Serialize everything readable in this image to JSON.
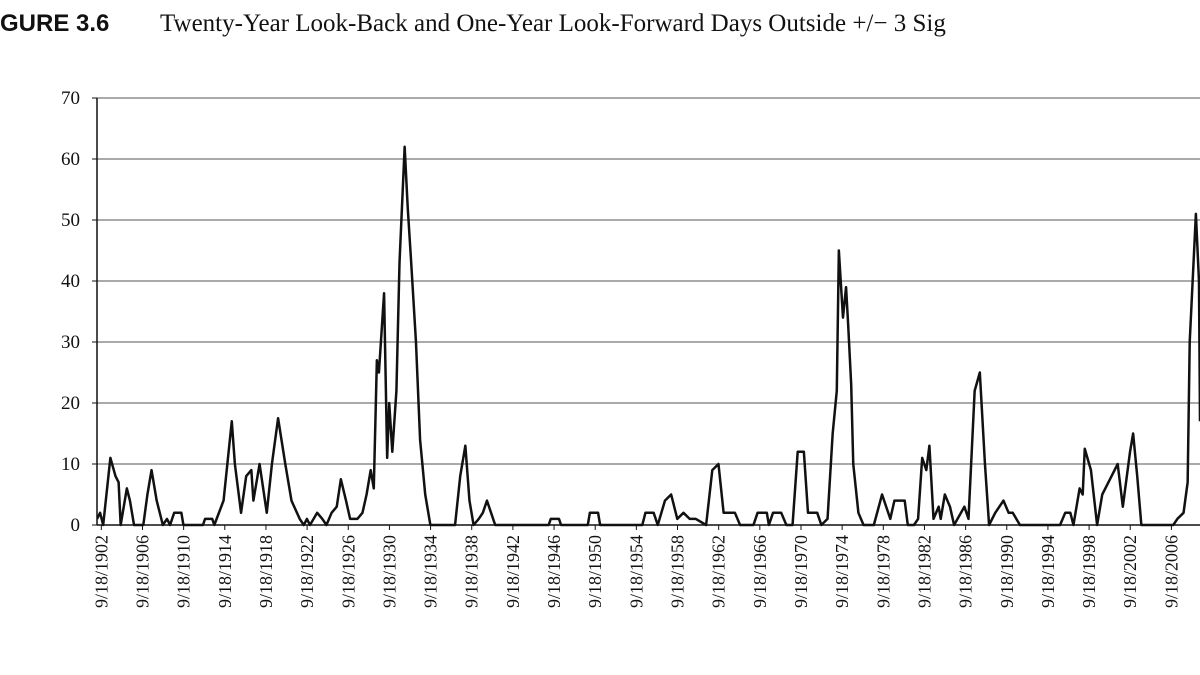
{
  "chart_data": {
    "type": "line",
    "figure_label": "GURE 3.6",
    "title": "Twenty-Year Look-Back and One-Year Look-Forward Days Outside +/− 3 Sig",
    "x": [
      1902.3,
      1902.6,
      1902.9,
      1903.6,
      1904.1,
      1904.4,
      1904.6,
      1905.2,
      1905.5,
      1905.9,
      1906.8,
      1907.2,
      1907.6,
      1908.1,
      1908.7,
      1909.1,
      1909.4,
      1909.8,
      1910.5,
      1910.7,
      1912.6,
      1912.8,
      1913.5,
      1913.7,
      1914.6,
      1915.4,
      1915.7,
      1916.3,
      1916.8,
      1917.3,
      1917.5,
      1918.1,
      1918.8,
      1919.3,
      1919.9,
      1920.6,
      1921.2,
      1922.0,
      1922.4,
      1922.7,
      1923.0,
      1923.7,
      1924.2,
      1924.6,
      1925.1,
      1925.6,
      1926.0,
      1926.5,
      1926.9,
      1927.6,
      1928.1,
      1928.5,
      1928.9,
      1929.2,
      1929.5,
      1929.7,
      1930.2,
      1930.5,
      1930.7,
      1931.0,
      1931.4,
      1931.7,
      1932.2,
      1932.5,
      1932.8,
      1933.3,
      1933.7,
      1934.2,
      1934.7,
      1937.1,
      1937.6,
      1938.1,
      1938.5,
      1938.9,
      1939.4,
      1939.8,
      1940.2,
      1940.6,
      1941.0,
      1946.2,
      1946.4,
      1947.2,
      1947.4,
      1950.0,
      1950.2,
      1951.0,
      1951.2,
      1955.3,
      1955.6,
      1956.4,
      1956.8,
      1957.5,
      1958.1,
      1958.7,
      1959.3,
      1959.9,
      1960.5,
      1961.5,
      1962.1,
      1962.7,
      1963.2,
      1964.3,
      1964.8,
      1966.1,
      1966.5,
      1967.4,
      1967.6,
      1968.0,
      1968.8,
      1969.3,
      1969.9,
      1970.4,
      1971.0,
      1971.4,
      1972.3,
      1972.7,
      1973.3,
      1973.8,
      1974.2,
      1974.4,
      1974.8,
      1975.1,
      1975.3,
      1975.6,
      1975.8,
      1976.3,
      1976.8,
      1977.8,
      1978.6,
      1979.4,
      1979.8,
      1980.8,
      1981.1,
      1981.7,
      1982.1,
      1982.5,
      1982.9,
      1983.2,
      1983.6,
      1984.1,
      1984.3,
      1984.7,
      1985.2,
      1985.6,
      1986.6,
      1987.0,
      1987.6,
      1988.1,
      1988.6,
      1989.0,
      1989.6,
      1990.4,
      1990.9,
      1991.3,
      1992.0,
      1995.9,
      1996.4,
      1996.9,
      1997.2,
      1997.8,
      1998.1,
      1998.3,
      1998.9,
      1999.5,
      2000.0,
      2000.6,
      2001.5,
      2002.0,
      2002.7,
      2003.0,
      2003.4,
      2003.8,
      2006.9,
      2007.3,
      2007.9,
      2008.3,
      2008.5,
      2009.1,
      2009.4,
      2009.5
    ],
    "series": [
      {
        "color": "#111111",
        "values": [
          1,
          2,
          0,
          11,
          8,
          7,
          0,
          6,
          4,
          0,
          0,
          5,
          9,
          4,
          0,
          1,
          0,
          2,
          2,
          0,
          0,
          1,
          1,
          0,
          4,
          17,
          10,
          2,
          8,
          9,
          4,
          10,
          2,
          10,
          17.5,
          10,
          4,
          1,
          0,
          1,
          0,
          2,
          1,
          0,
          2,
          3,
          7.5,
          4,
          1,
          1,
          2,
          5,
          9,
          6,
          27,
          25,
          38,
          11,
          20,
          12,
          22,
          43,
          62,
          52,
          44,
          30,
          14,
          5,
          0,
          0,
          8,
          13,
          4,
          0,
          1,
          2,
          4,
          2,
          0,
          0,
          1,
          1,
          0,
          0,
          2,
          2,
          0,
          0,
          2,
          2,
          0,
          4,
          5,
          1,
          2,
          1,
          1,
          0,
          9,
          10,
          2,
          2,
          0,
          0,
          2,
          2,
          0,
          2,
          2,
          0,
          0,
          12,
          12,
          2,
          2,
          0,
          1,
          15,
          22,
          45,
          34,
          39,
          33,
          23,
          10,
          2,
          0,
          0,
          5,
          1,
          4,
          4,
          0,
          0,
          1,
          11,
          9,
          13,
          1,
          3,
          1,
          5,
          3,
          0,
          3,
          1,
          22,
          25,
          10,
          0,
          2,
          4,
          2,
          2,
          0,
          0,
          2,
          2,
          0,
          6,
          5,
          12.5,
          9,
          0,
          5,
          7,
          10,
          3,
          12,
          15,
          8,
          0,
          0,
          1,
          2,
          7,
          30,
          51,
          40,
          17
        ]
      }
    ],
    "xlim": [
      1902.3,
      2009.5
    ],
    "xticks": [
      {
        "value": 1902.72,
        "label": "9/18/1902"
      },
      {
        "value": 1906.72,
        "label": "9/18/1906"
      },
      {
        "value": 1910.72,
        "label": "9/18/1910"
      },
      {
        "value": 1914.72,
        "label": "9/18/1914"
      },
      {
        "value": 1918.72,
        "label": "9/18/1918"
      },
      {
        "value": 1922.72,
        "label": "9/18/1922"
      },
      {
        "value": 1926.72,
        "label": "9/18/1926"
      },
      {
        "value": 1930.72,
        "label": "9/18/1930"
      },
      {
        "value": 1934.72,
        "label": "9/18/1934"
      },
      {
        "value": 1938.72,
        "label": "9/18/1938"
      },
      {
        "value": 1942.72,
        "label": "9/18/1942"
      },
      {
        "value": 1946.72,
        "label": "9/18/1946"
      },
      {
        "value": 1950.72,
        "label": "9/18/1950"
      },
      {
        "value": 1954.72,
        "label": "9/18/1954"
      },
      {
        "value": 1958.72,
        "label": "9/18/1958"
      },
      {
        "value": 1962.72,
        "label": "9/18/1962"
      },
      {
        "value": 1966.72,
        "label": "9/18/1966"
      },
      {
        "value": 1970.72,
        "label": "9/18/1970"
      },
      {
        "value": 1974.72,
        "label": "9/18/1974"
      },
      {
        "value": 1978.72,
        "label": "9/18/1978"
      },
      {
        "value": 1982.72,
        "label": "9/18/1982"
      },
      {
        "value": 1986.72,
        "label": "9/18/1986"
      },
      {
        "value": 1990.72,
        "label": "9/18/1990"
      },
      {
        "value": 1994.72,
        "label": "9/18/1994"
      },
      {
        "value": 1998.72,
        "label": "9/18/1998"
      },
      {
        "value": 2002.72,
        "label": "9/18/2002"
      },
      {
        "value": 2006.72,
        "label": "9/18/2006"
      }
    ],
    "ylim": [
      0,
      70
    ],
    "yticks": [
      0,
      10,
      20,
      30,
      40,
      50,
      60,
      70
    ],
    "grid": true
  }
}
